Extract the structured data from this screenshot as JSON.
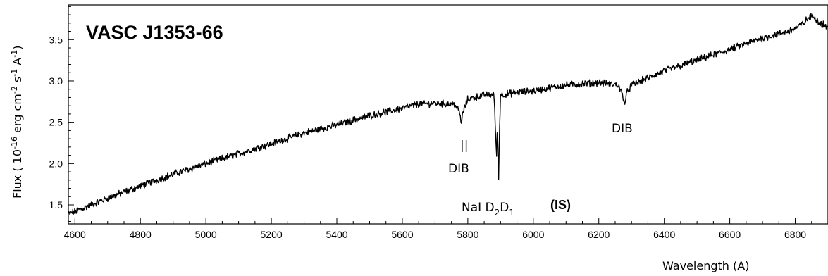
{
  "chart_data": {
    "type": "line",
    "title": "VASC J1353-66",
    "xlabel": "Wavelength (A)",
    "ylabel": "Flux ( 10^-16 erg cm^-2 s^-1 A^-1 )",
    "ylabel_parts": {
      "a": "Flux ( 10",
      "a_sup": "-16",
      "b": " erg cm",
      "b_sup": "-2",
      "c": " s",
      "c_sup": "-1",
      "d": " A",
      "d_sup": "-1",
      "e": ")"
    },
    "xlim": [
      4580,
      6900
    ],
    "ylim": [
      1.27,
      3.92
    ],
    "x_ticks": [
      4600,
      4800,
      5000,
      5200,
      5400,
      5600,
      5800,
      6000,
      6200,
      6400,
      6600,
      6800
    ],
    "y_ticks": [
      1.5,
      2.0,
      2.5,
      3.0,
      3.5
    ],
    "y_tick_labels": [
      "1.5",
      "2.0",
      "2.5",
      "3.0",
      "3.5"
    ],
    "grid": false,
    "series": [
      {
        "x": [
          4580,
          4600,
          4700,
          4800,
          4900,
          5000,
          5100,
          5200,
          5300,
          5400,
          5500,
          5600,
          5650,
          5700,
          5760,
          5775,
          5780,
          5785,
          5800,
          5850,
          5880,
          5888,
          5890,
          5894,
          5896,
          5900,
          5950,
          6000,
          6100,
          6200,
          6260,
          6275,
          6280,
          6285,
          6300,
          6400,
          6500,
          6600,
          6700,
          6780,
          6820,
          6840,
          6855,
          6870,
          6900
        ],
        "y": [
          1.39,
          1.42,
          1.58,
          1.73,
          1.87,
          2.0,
          2.12,
          2.24,
          2.37,
          2.47,
          2.58,
          2.67,
          2.72,
          2.73,
          2.72,
          2.62,
          2.48,
          2.62,
          2.78,
          2.83,
          2.84,
          2.05,
          2.5,
          1.8,
          2.3,
          2.83,
          2.86,
          2.88,
          2.95,
          2.98,
          2.95,
          2.8,
          2.72,
          2.85,
          2.95,
          3.12,
          3.25,
          3.38,
          3.52,
          3.6,
          3.68,
          3.76,
          3.79,
          3.72,
          3.65
        ]
      }
    ],
    "annotations": [
      {
        "text": "DIB",
        "x": 5780,
        "y": 2.07
      },
      {
        "text": "DIB",
        "x": 6280,
        "y": 2.56
      },
      {
        "text": "NaI D",
        "x": 5852,
        "y": 1.38
      },
      {
        "text": "(IS)",
        "x": 5925,
        "y": 1.4
      }
    ],
    "annotation_parts": {
      "dib_marker": "||",
      "nai_prefix": "NaI D",
      "nai_sub1": "2",
      "nai_mid": "D",
      "nai_sub2": "1",
      "is_label": "(IS)",
      "dib_label": "DIB"
    }
  }
}
